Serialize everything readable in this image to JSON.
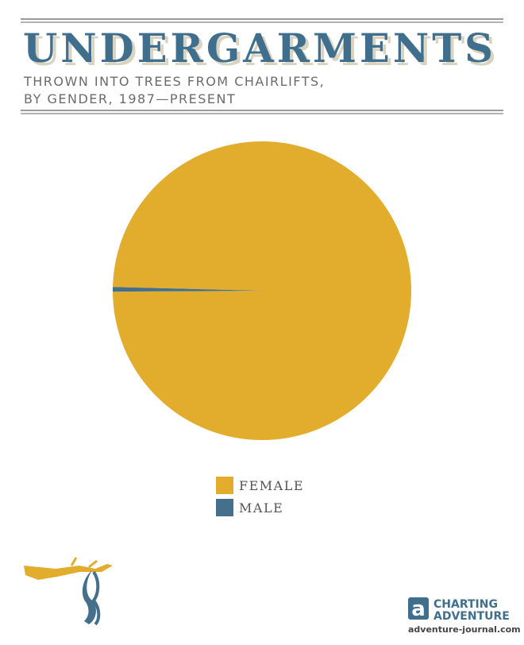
{
  "chart_data": {
    "type": "pie",
    "title": "UNDERGARMENTS",
    "subtitle": [
      "THROWN INTO TREES FROM CHAIRLIFTS,",
      "BY GENDER, 1987—PRESENT"
    ],
    "categories": [
      "FEMALE",
      "MALE"
    ],
    "values": [
      99.5,
      0.5
    ],
    "colors": [
      "#e2ac2c",
      "#44708c"
    ]
  },
  "credit": {
    "logo_letter": "a",
    "line1": "CHARTING",
    "line2": "ADVENTURE",
    "url": "adventure-journal.com"
  }
}
